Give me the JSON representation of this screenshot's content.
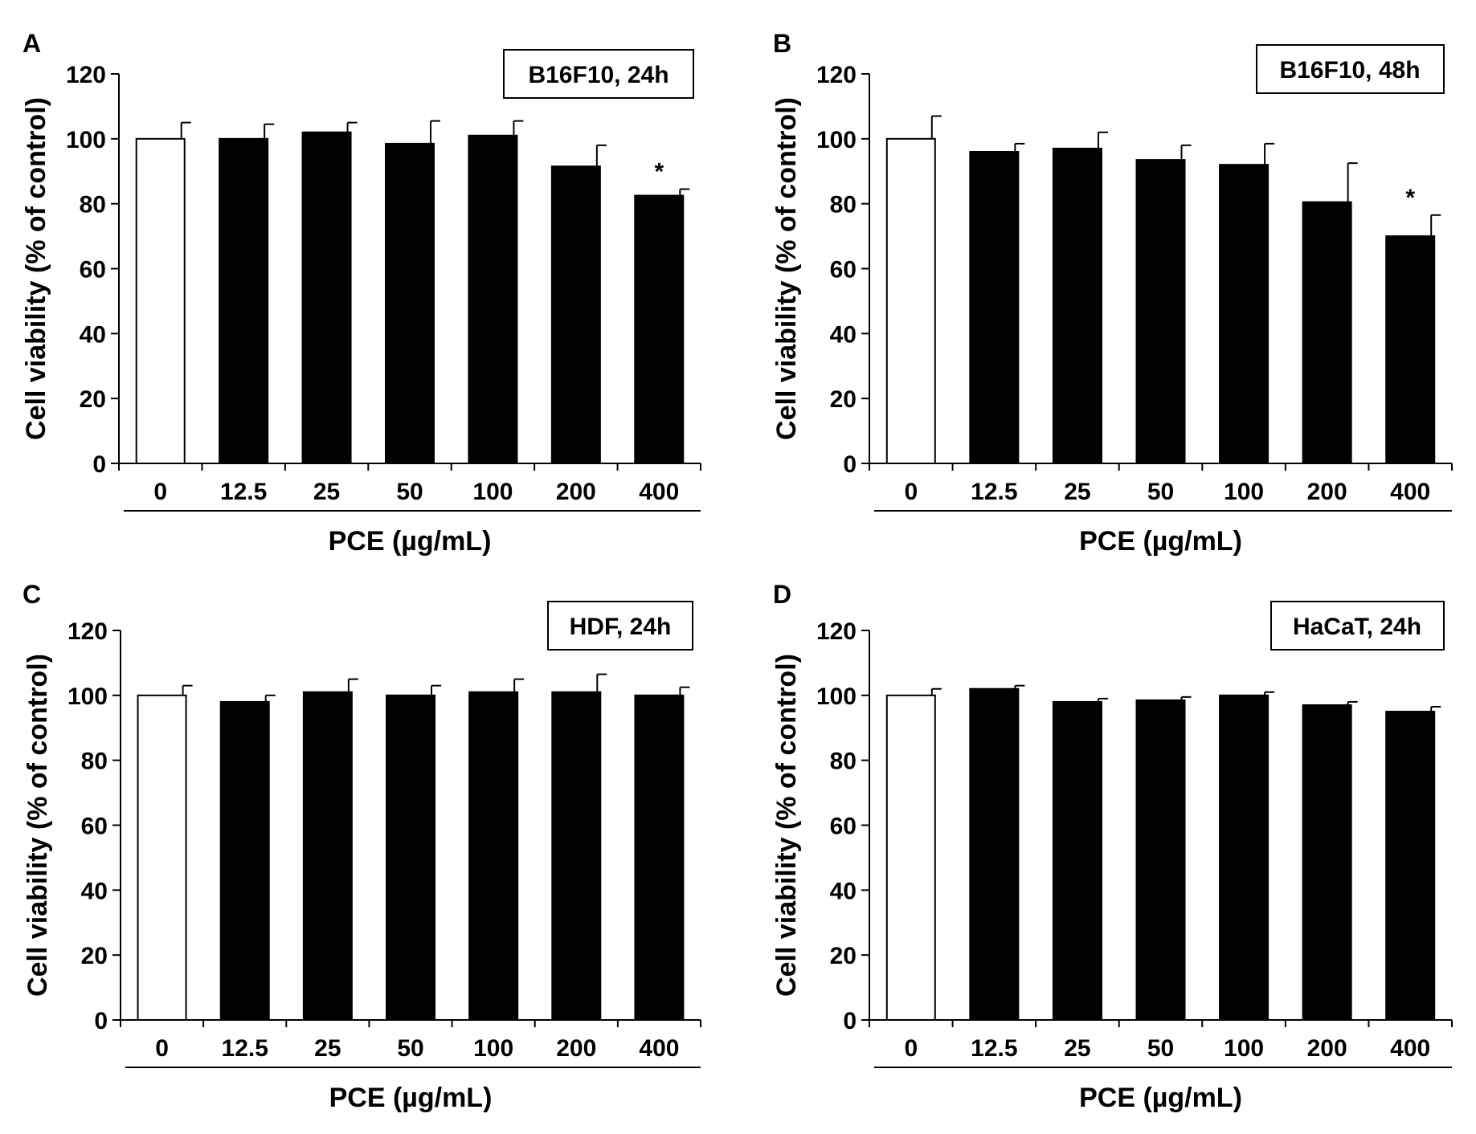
{
  "chart_data": [
    {
      "type": "bar",
      "panel": "A",
      "title": "B16F10, 24h",
      "xlabel": "PCE (µg/mL)",
      "ylabel": "Cell viability (% of control)",
      "ylim": [
        0,
        120
      ],
      "yticks": [
        "0",
        "20",
        "40",
        "60",
        "80",
        "100",
        "120"
      ],
      "categories": [
        "0",
        "12.5",
        "25",
        "50",
        "100",
        "200",
        "400"
      ],
      "values": [
        100,
        100,
        102,
        98.5,
        101,
        91.5,
        82.5
      ],
      "errors": [
        5,
        4.5,
        3,
        7,
        4.5,
        6.5,
        2
      ],
      "significance": [
        "",
        "",
        "",
        "",
        "",
        "",
        "*"
      ],
      "bar_colors": [
        "#ffffff",
        "#000000",
        "#000000",
        "#000000",
        "#000000",
        "#000000",
        "#000000"
      ],
      "grid": false,
      "legend": "top-right"
    },
    {
      "type": "bar",
      "panel": "B",
      "title": "B16F10, 48h",
      "xlabel": "PCE (µg/mL)",
      "ylabel": "Cell viability (% of control)",
      "ylim": [
        0,
        120
      ],
      "yticks": [
        "0",
        "20",
        "40",
        "60",
        "80",
        "100",
        "120"
      ],
      "categories": [
        "0",
        "12.5",
        "25",
        "50",
        "100",
        "200",
        "400"
      ],
      "values": [
        100,
        96,
        97,
        93.5,
        92,
        80.5,
        70
      ],
      "errors": [
        7,
        2.5,
        5,
        4.5,
        6.5,
        12,
        6.5
      ],
      "significance": [
        "",
        "",
        "",
        "",
        "",
        "",
        "*"
      ],
      "bar_colors": [
        "#ffffff",
        "#000000",
        "#000000",
        "#000000",
        "#000000",
        "#000000",
        "#000000"
      ],
      "grid": false,
      "legend": "top-right"
    },
    {
      "type": "bar",
      "panel": "C",
      "title": "HDF, 24h",
      "xlabel": "PCE (µg/mL)",
      "ylabel": "Cell viability (% of control)",
      "ylim": [
        0,
        120
      ],
      "yticks": [
        "0",
        "20",
        "40",
        "60",
        "80",
        "100",
        "120"
      ],
      "categories": [
        "0",
        "12.5",
        "25",
        "50",
        "100",
        "200",
        "400"
      ],
      "values": [
        100,
        98,
        101,
        100,
        101,
        101,
        100
      ],
      "errors": [
        3,
        2,
        4,
        3,
        4,
        5.5,
        2.5
      ],
      "significance": [
        "",
        "",
        "",
        "",
        "",
        "",
        ""
      ],
      "bar_colors": [
        "#ffffff",
        "#000000",
        "#000000",
        "#000000",
        "#000000",
        "#000000",
        "#000000"
      ],
      "grid": false,
      "legend": "top-right"
    },
    {
      "type": "bar",
      "panel": "D",
      "title": "HaCaT, 24h",
      "xlabel": "PCE (µg/mL)",
      "ylabel": "Cell viability (% of control)",
      "ylim": [
        0,
        120
      ],
      "yticks": [
        "0",
        "20",
        "40",
        "60",
        "80",
        "100",
        "120"
      ],
      "categories": [
        "0",
        "12.5",
        "25",
        "50",
        "100",
        "200",
        "400"
      ],
      "values": [
        100,
        102,
        98,
        98.5,
        100,
        97,
        95
      ],
      "errors": [
        2,
        1,
        1,
        1,
        1,
        1,
        1.5
      ],
      "significance": [
        "",
        "",
        "",
        "",
        "",
        "",
        ""
      ],
      "bar_colors": [
        "#ffffff",
        "#000000",
        "#000000",
        "#000000",
        "#000000",
        "#000000",
        "#000000"
      ],
      "grid": false,
      "legend": "top-right"
    }
  ]
}
